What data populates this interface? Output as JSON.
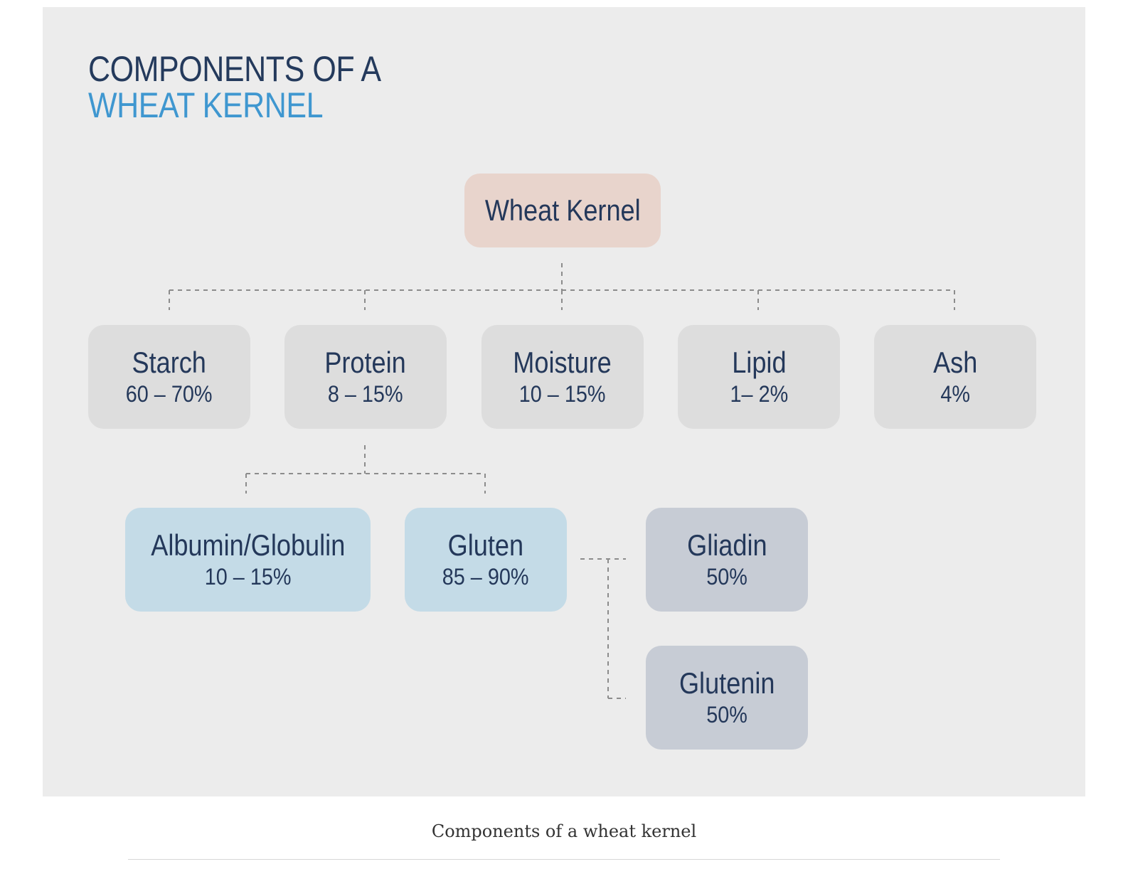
{
  "title": {
    "line1": "COMPONENTS OF A",
    "line2": "WHEAT KERNEL"
  },
  "root": {
    "name": "Wheat Kernel"
  },
  "components": [
    {
      "name": "Starch",
      "percent": "60 – 70%"
    },
    {
      "name": "Protein",
      "percent": "8 – 15%"
    },
    {
      "name": "Moisture",
      "percent": "10 – 15%"
    },
    {
      "name": "Lipid",
      "percent": "1– 2%"
    },
    {
      "name": "Ash",
      "percent": "4%"
    }
  ],
  "protein_components": [
    {
      "name": "Albumin/Globulin",
      "percent": "10 – 15%"
    },
    {
      "name": "Gluten",
      "percent": "85 – 90%"
    }
  ],
  "gluten_components": [
    {
      "name": "Gliadin",
      "percent": "50%"
    },
    {
      "name": "Glutenin",
      "percent": "50%"
    }
  ],
  "caption": "Components of a wheat kernel",
  "colors": {
    "title_dark": "#243a5c",
    "title_accent": "#3f97d0",
    "root_fill": "#e8d4cc",
    "component_fill": "#dddddd",
    "protein_child_fill": "#c4dbe7",
    "gluten_child_fill": "#c7ccd5",
    "text": "#24385a",
    "connector": "#8c8c8c"
  }
}
